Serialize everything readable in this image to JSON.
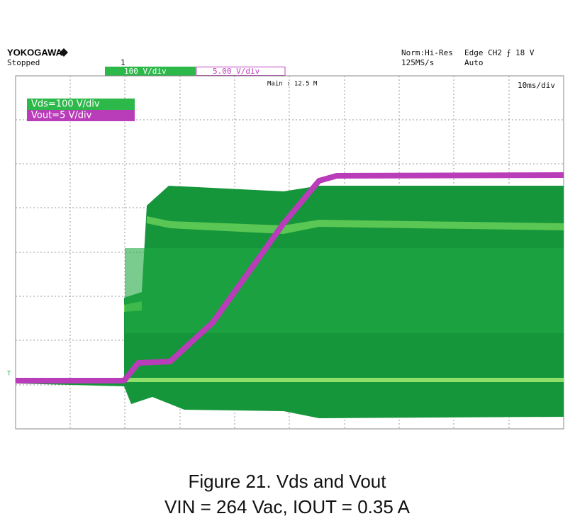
{
  "scope": {
    "brand": "YOKOGAWA",
    "status": "Stopped",
    "acq_mode": "Norm:Hi-Res",
    "sample_rate": "125MS/s",
    "trigger": "Edge CH2 ⨍ 18 V",
    "trigger_mode": "Auto",
    "trigger_marker": "1",
    "ch1_scale": "100 V/div",
    "ch2_scale": "5.00 V/div",
    "memory": "Main : 12.5 M",
    "timebase": "10ms/div",
    "legend": [
      "Vds=100 V/div",
      "Vout=5 V/div"
    ]
  },
  "caption": {
    "title": "Figure 21. Vds and Vout",
    "conditions": "VIN = 264 Vac, IOUT = 0.35 A"
  }
}
